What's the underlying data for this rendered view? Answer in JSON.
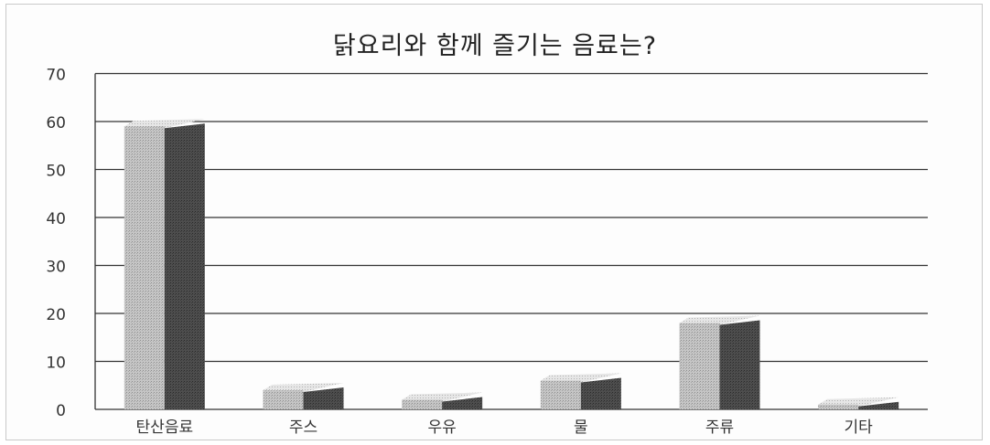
{
  "chart_data": {
    "type": "bar",
    "title": "닭요리와 함께 즐기는 음료는?",
    "categories": [
      "탄산음료",
      "주스",
      "우유",
      "물",
      "주류",
      "기타"
    ],
    "values": [
      59,
      4,
      2,
      6,
      18,
      1
    ],
    "yticks": [
      "0",
      "10",
      "20",
      "30",
      "40",
      "50",
      "60",
      "70"
    ],
    "ylim": [
      0,
      70
    ],
    "grid": true,
    "style": "3d-bar",
    "colors": {
      "front": "#b7b7b7",
      "side": "#4a4a4a",
      "top": "#e0e0e0",
      "grid": "#333333"
    }
  }
}
